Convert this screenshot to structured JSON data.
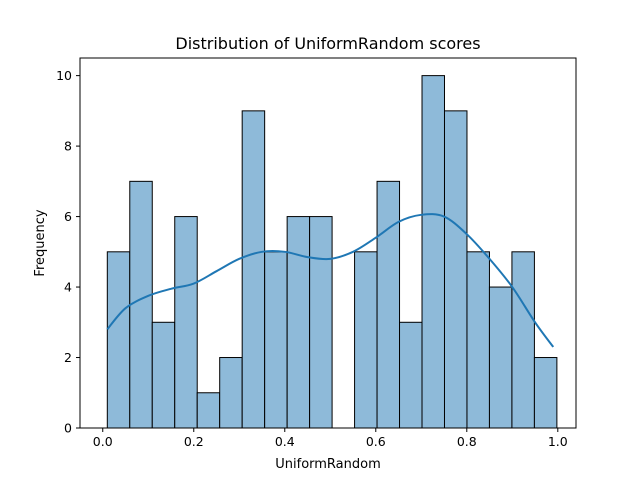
{
  "chart_data": {
    "type": "bar",
    "title": "Distribution of UniformRandom scores",
    "xlabel": "UniformRandom",
    "ylabel": "Frequency",
    "xlim": [
      -0.05,
      1.04
    ],
    "ylim": [
      0,
      10.5
    ],
    "xticks": [
      0.0,
      0.2,
      0.4,
      0.6,
      0.8,
      1.0
    ],
    "xtick_labels": [
      "0.0",
      "0.2",
      "0.4",
      "0.6",
      "0.8",
      "1.0"
    ],
    "yticks": [
      0,
      2,
      4,
      6,
      8,
      10
    ],
    "ytick_labels": [
      "0",
      "2",
      "4",
      "6",
      "8",
      "10"
    ],
    "grid": false,
    "bin_start": 0.01,
    "bin_width": 0.0494,
    "values": [
      5,
      7,
      3,
      6,
      1,
      2,
      9,
      5,
      6,
      6,
      0,
      5,
      7,
      3,
      10,
      9,
      5,
      4,
      5,
      2
    ],
    "kde": {
      "x": [
        0.01,
        0.05,
        0.1,
        0.15,
        0.2,
        0.25,
        0.3,
        0.35,
        0.4,
        0.45,
        0.5,
        0.55,
        0.6,
        0.65,
        0.7,
        0.75,
        0.8,
        0.85,
        0.9,
        0.95,
        0.99
      ],
      "y": [
        2.8,
        3.4,
        3.75,
        3.95,
        4.1,
        4.45,
        4.8,
        5.0,
        5.0,
        4.85,
        4.8,
        5.0,
        5.4,
        5.85,
        6.05,
        6.0,
        5.5,
        4.8,
        4.0,
        3.0,
        2.3
      ]
    },
    "colors": {
      "bar": "#8ebad9",
      "edge": "#000000",
      "kde": "#1f77b4"
    }
  }
}
